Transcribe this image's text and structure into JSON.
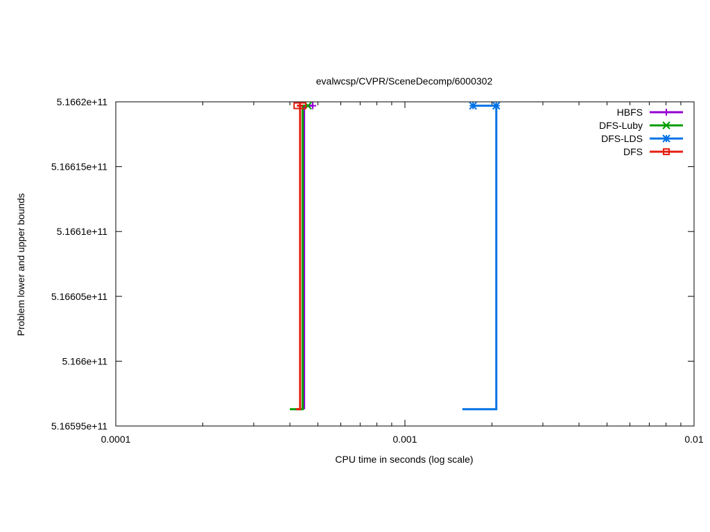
{
  "chart_data": {
    "type": "line",
    "title": "evalwcsp/CVPR/SceneDecomp/6000302",
    "xlabel": "CPU time in seconds (log scale)",
    "ylabel": "Problem lower and upper bounds",
    "x_scale": "log",
    "xlim": [
      0.0001,
      0.01
    ],
    "ylim": [
      516595000000,
      516620000000
    ],
    "x_ticks": [
      {
        "value": 0.0001,
        "label": "0.0001"
      },
      {
        "value": 0.001,
        "label": "0.001"
      },
      {
        "value": 0.01,
        "label": "0.01"
      }
    ],
    "y_ticks": [
      {
        "value": 516595000000,
        "label": "5.16595e+11"
      },
      {
        "value": 516600000000,
        "label": "5.166e+11"
      },
      {
        "value": 516605000000,
        "label": "5.16605e+11"
      },
      {
        "value": 516610000000,
        "label": "5.1661e+11"
      },
      {
        "value": 516615000000,
        "label": "5.16615e+11"
      },
      {
        "value": 516620000000,
        "label": "5.1662e+11"
      }
    ],
    "grid": false,
    "legend": "top-right",
    "series": [
      {
        "name": "HBFS",
        "color": "#9400d3",
        "marker": "plus",
        "lower": [
          [
            0.000448,
            516596300000
          ],
          [
            0.000448,
            516619700000
          ]
        ],
        "upper": [
          [
            0.000448,
            516619700000
          ],
          [
            0.00048,
            516619700000
          ]
        ],
        "points": [
          [
            0.00048,
            516619700000
          ]
        ]
      },
      {
        "name": "DFS-Luby",
        "color": "#009e00",
        "marker": "x",
        "lower": [
          [
            0.0004,
            516596300000
          ],
          [
            0.000443,
            516596300000
          ],
          [
            0.000443,
            516619700000
          ]
        ],
        "upper": [
          [
            0.000443,
            516619700000
          ],
          [
            0.000462,
            516619700000
          ]
        ],
        "points": [
          [
            0.000462,
            516619700000
          ]
        ]
      },
      {
        "name": "DFS-LDS",
        "color": "#0072e6",
        "marker": "star",
        "lower": [
          [
            0.00158,
            516596300000
          ],
          [
            0.00207,
            516596300000
          ],
          [
            0.00207,
            516619700000
          ]
        ],
        "upper": [
          [
            0.00172,
            516619700000
          ],
          [
            0.00207,
            516619700000
          ]
        ],
        "points": [
          [
            0.00172,
            516619700000
          ],
          [
            0.00207,
            516619700000
          ]
        ]
      },
      {
        "name": "DFS",
        "color": "#e51e10",
        "marker": "square",
        "lower": [
          [
            0.00042,
            516596300000
          ],
          [
            0.000434,
            516596300000
          ],
          [
            0.000434,
            516619700000
          ]
        ],
        "upper": [
          [
            0.000423,
            516619700000
          ],
          [
            0.000444,
            516619700000
          ]
        ],
        "points": [
          [
            0.000423,
            516619700000
          ],
          [
            0.000444,
            516619700000
          ]
        ]
      }
    ]
  }
}
